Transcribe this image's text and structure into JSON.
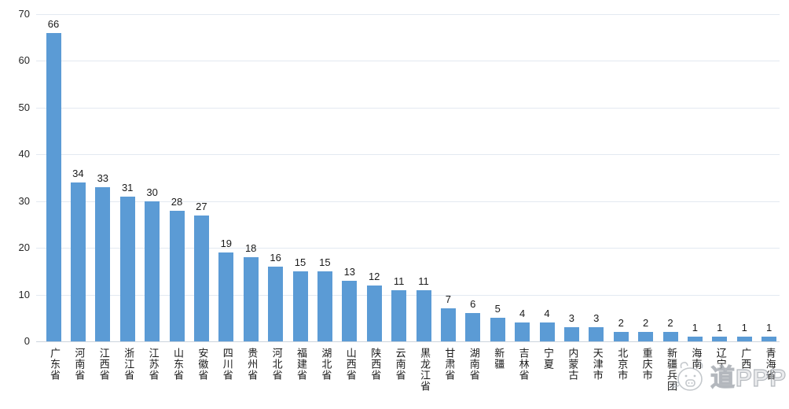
{
  "chart_data": {
    "type": "bar",
    "title": "",
    "xlabel": "",
    "ylabel": "",
    "categories": [
      "广东省",
      "河南省",
      "江西省",
      "浙江省",
      "江苏省",
      "山东省",
      "安徽省",
      "四川省",
      "贵州省",
      "河北省",
      "福建省",
      "湖北省",
      "山西省",
      "陕西省",
      "云南省",
      "黑龙江省",
      "甘肃省",
      "湖南省",
      "新疆",
      "吉林省",
      "宁夏",
      "内蒙古",
      "天津市",
      "北京市",
      "重庆市",
      "新疆兵团",
      "海南",
      "辽宁",
      "广西",
      "青海省"
    ],
    "values": [
      66,
      34,
      33,
      31,
      30,
      28,
      27,
      19,
      18,
      16,
      15,
      15,
      13,
      12,
      11,
      11,
      7,
      6,
      5,
      4,
      4,
      3,
      3,
      2,
      2,
      2,
      1,
      1,
      1,
      1
    ],
    "ylim": [
      0,
      70
    ],
    "yticks": [
      0,
      10,
      20,
      30,
      40,
      50,
      60,
      70
    ],
    "grid": true,
    "legend": false,
    "value_labels": true,
    "bar_color": "#5b9bd5"
  },
  "colors": {
    "bar": "#5b9bd5",
    "gridline": "#e3e9f1",
    "axis_line": "#ccd4dd",
    "text": "#1a1a1a",
    "watermark": "#b9bec4"
  },
  "watermark": {
    "icon": "mascot-face-icon",
    "text": "道PPP"
  }
}
